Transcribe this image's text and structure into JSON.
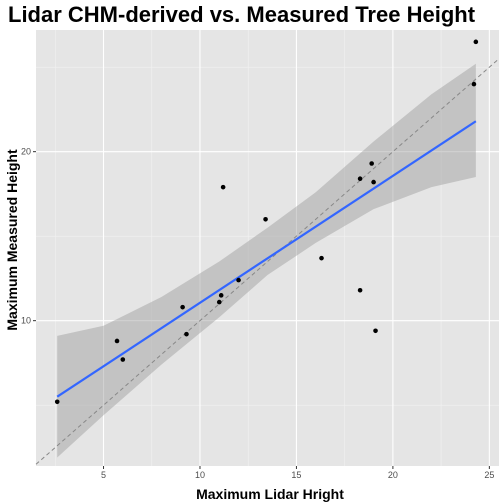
{
  "chart_data": {
    "type": "scatter",
    "title": "Lidar CHM-derived vs. Measured Tree Height",
    "xlabel": "Maximum Lidar Hright",
    "ylabel": "Maximum Measured Height",
    "xlim": [
      1.5,
      25.5
    ],
    "ylim": [
      1.4,
      27.2
    ],
    "x_ticks": [
      5,
      10,
      15,
      20,
      25
    ],
    "y_ticks": [
      10,
      20
    ],
    "grid": true,
    "panel_background": "#e5e5e5",
    "point_color": "#000000",
    "fit_line_color": "#3366ff",
    "ribbon_color": "#999999",
    "reference_line": {
      "style": "dashed",
      "slope": 1,
      "intercept": 0,
      "color": "#888888"
    },
    "fit_line": {
      "x_start": 2.6,
      "x_end": 24.3,
      "y_start": 5.5,
      "y_end": 21.8
    },
    "confidence_band": {
      "x": [
        2.6,
        5,
        8,
        11,
        13.5,
        16,
        19,
        22,
        24.3
      ],
      "lower": [
        1.9,
        4.4,
        7.4,
        10.2,
        12.7,
        14.6,
        16.6,
        17.9,
        18.5
      ],
      "upper": [
        9.1,
        9.7,
        11.4,
        13.5,
        15.5,
        17.6,
        20.6,
        23.4,
        25.2
      ]
    },
    "points": [
      {
        "x": 2.6,
        "y": 5.2
      },
      {
        "x": 5.7,
        "y": 8.8
      },
      {
        "x": 6.0,
        "y": 7.7
      },
      {
        "x": 9.1,
        "y": 10.8
      },
      {
        "x": 9.3,
        "y": 9.2
      },
      {
        "x": 11.0,
        "y": 11.1
      },
      {
        "x": 11.1,
        "y": 11.5
      },
      {
        "x": 11.2,
        "y": 17.9
      },
      {
        "x": 12.0,
        "y": 12.4
      },
      {
        "x": 13.4,
        "y": 16.0
      },
      {
        "x": 16.3,
        "y": 13.7
      },
      {
        "x": 18.3,
        "y": 11.8
      },
      {
        "x": 18.3,
        "y": 18.4
      },
      {
        "x": 18.9,
        "y": 19.3
      },
      {
        "x": 19.0,
        "y": 18.2
      },
      {
        "x": 19.1,
        "y": 9.4
      },
      {
        "x": 24.2,
        "y": 24.0
      },
      {
        "x": 24.3,
        "y": 26.5
      }
    ]
  }
}
